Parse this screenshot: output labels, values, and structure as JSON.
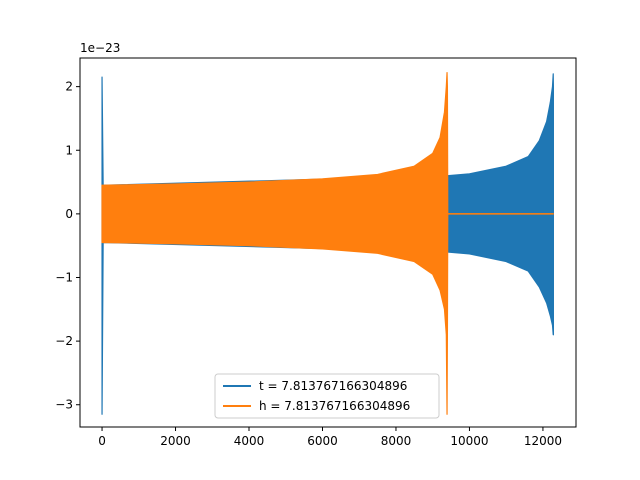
{
  "chart_data": {
    "type": "line",
    "title": "",
    "xlabel": "",
    "ylabel": "",
    "y_offset_label": "1e−23",
    "xlim": [
      -600,
      12900
    ],
    "ylim": [
      -3.35,
      2.45
    ],
    "xticks": [
      {
        "value": 0,
        "label": "0"
      },
      {
        "value": 2000,
        "label": "2000"
      },
      {
        "value": 4000,
        "label": "4000"
      },
      {
        "value": 6000,
        "label": "6000"
      },
      {
        "value": 8000,
        "label": "8000"
      },
      {
        "value": 10000,
        "label": "10000"
      },
      {
        "value": 12000,
        "label": "12000"
      }
    ],
    "yticks": [
      {
        "value": 2,
        "label": "2"
      },
      {
        "value": 1,
        "label": "1"
      },
      {
        "value": 0,
        "label": "0"
      },
      {
        "value": -1,
        "label": "−1"
      },
      {
        "value": -2,
        "label": "−2"
      },
      {
        "value": -3,
        "label": "−3"
      }
    ],
    "grid": false,
    "legend_position": "lower-center",
    "series": [
      {
        "name": "t = 7.813767166304896",
        "color": "#1f77b4",
        "envelope": [
          [
            0,
            -3.15,
            2.15
          ],
          [
            30,
            -0.45,
            0.45
          ],
          [
            9400,
            -0.6,
            0.6
          ],
          [
            10000,
            -0.63,
            0.63
          ],
          [
            11000,
            -0.75,
            0.75
          ],
          [
            11600,
            -0.9,
            0.9
          ],
          [
            11900,
            -1.15,
            1.15
          ],
          [
            12100,
            -1.4,
            1.45
          ],
          [
            12200,
            -1.6,
            1.75
          ],
          [
            12260,
            -1.75,
            2.0
          ],
          [
            12280,
            -1.9,
            2.2
          ],
          [
            12285,
            -1.9,
            2.0
          ]
        ]
      },
      {
        "name": "h = 7.813767166304896",
        "color": "#ff7f0e",
        "envelope": [
          [
            0,
            -0.45,
            0.45
          ],
          [
            2000,
            -0.47,
            0.47
          ],
          [
            4000,
            -0.5,
            0.5
          ],
          [
            6000,
            -0.55,
            0.55
          ],
          [
            7500,
            -0.62,
            0.62
          ],
          [
            8500,
            -0.75,
            0.75
          ],
          [
            9000,
            -0.95,
            0.95
          ],
          [
            9200,
            -1.2,
            1.2
          ],
          [
            9320,
            -1.5,
            1.6
          ],
          [
            9370,
            -1.9,
            2.0
          ],
          [
            9390,
            -3.15,
            2.22
          ],
          [
            9400,
            -1.9,
            2.0
          ],
          [
            9410,
            0,
            0
          ],
          [
            12285,
            0,
            0
          ]
        ]
      }
    ]
  }
}
